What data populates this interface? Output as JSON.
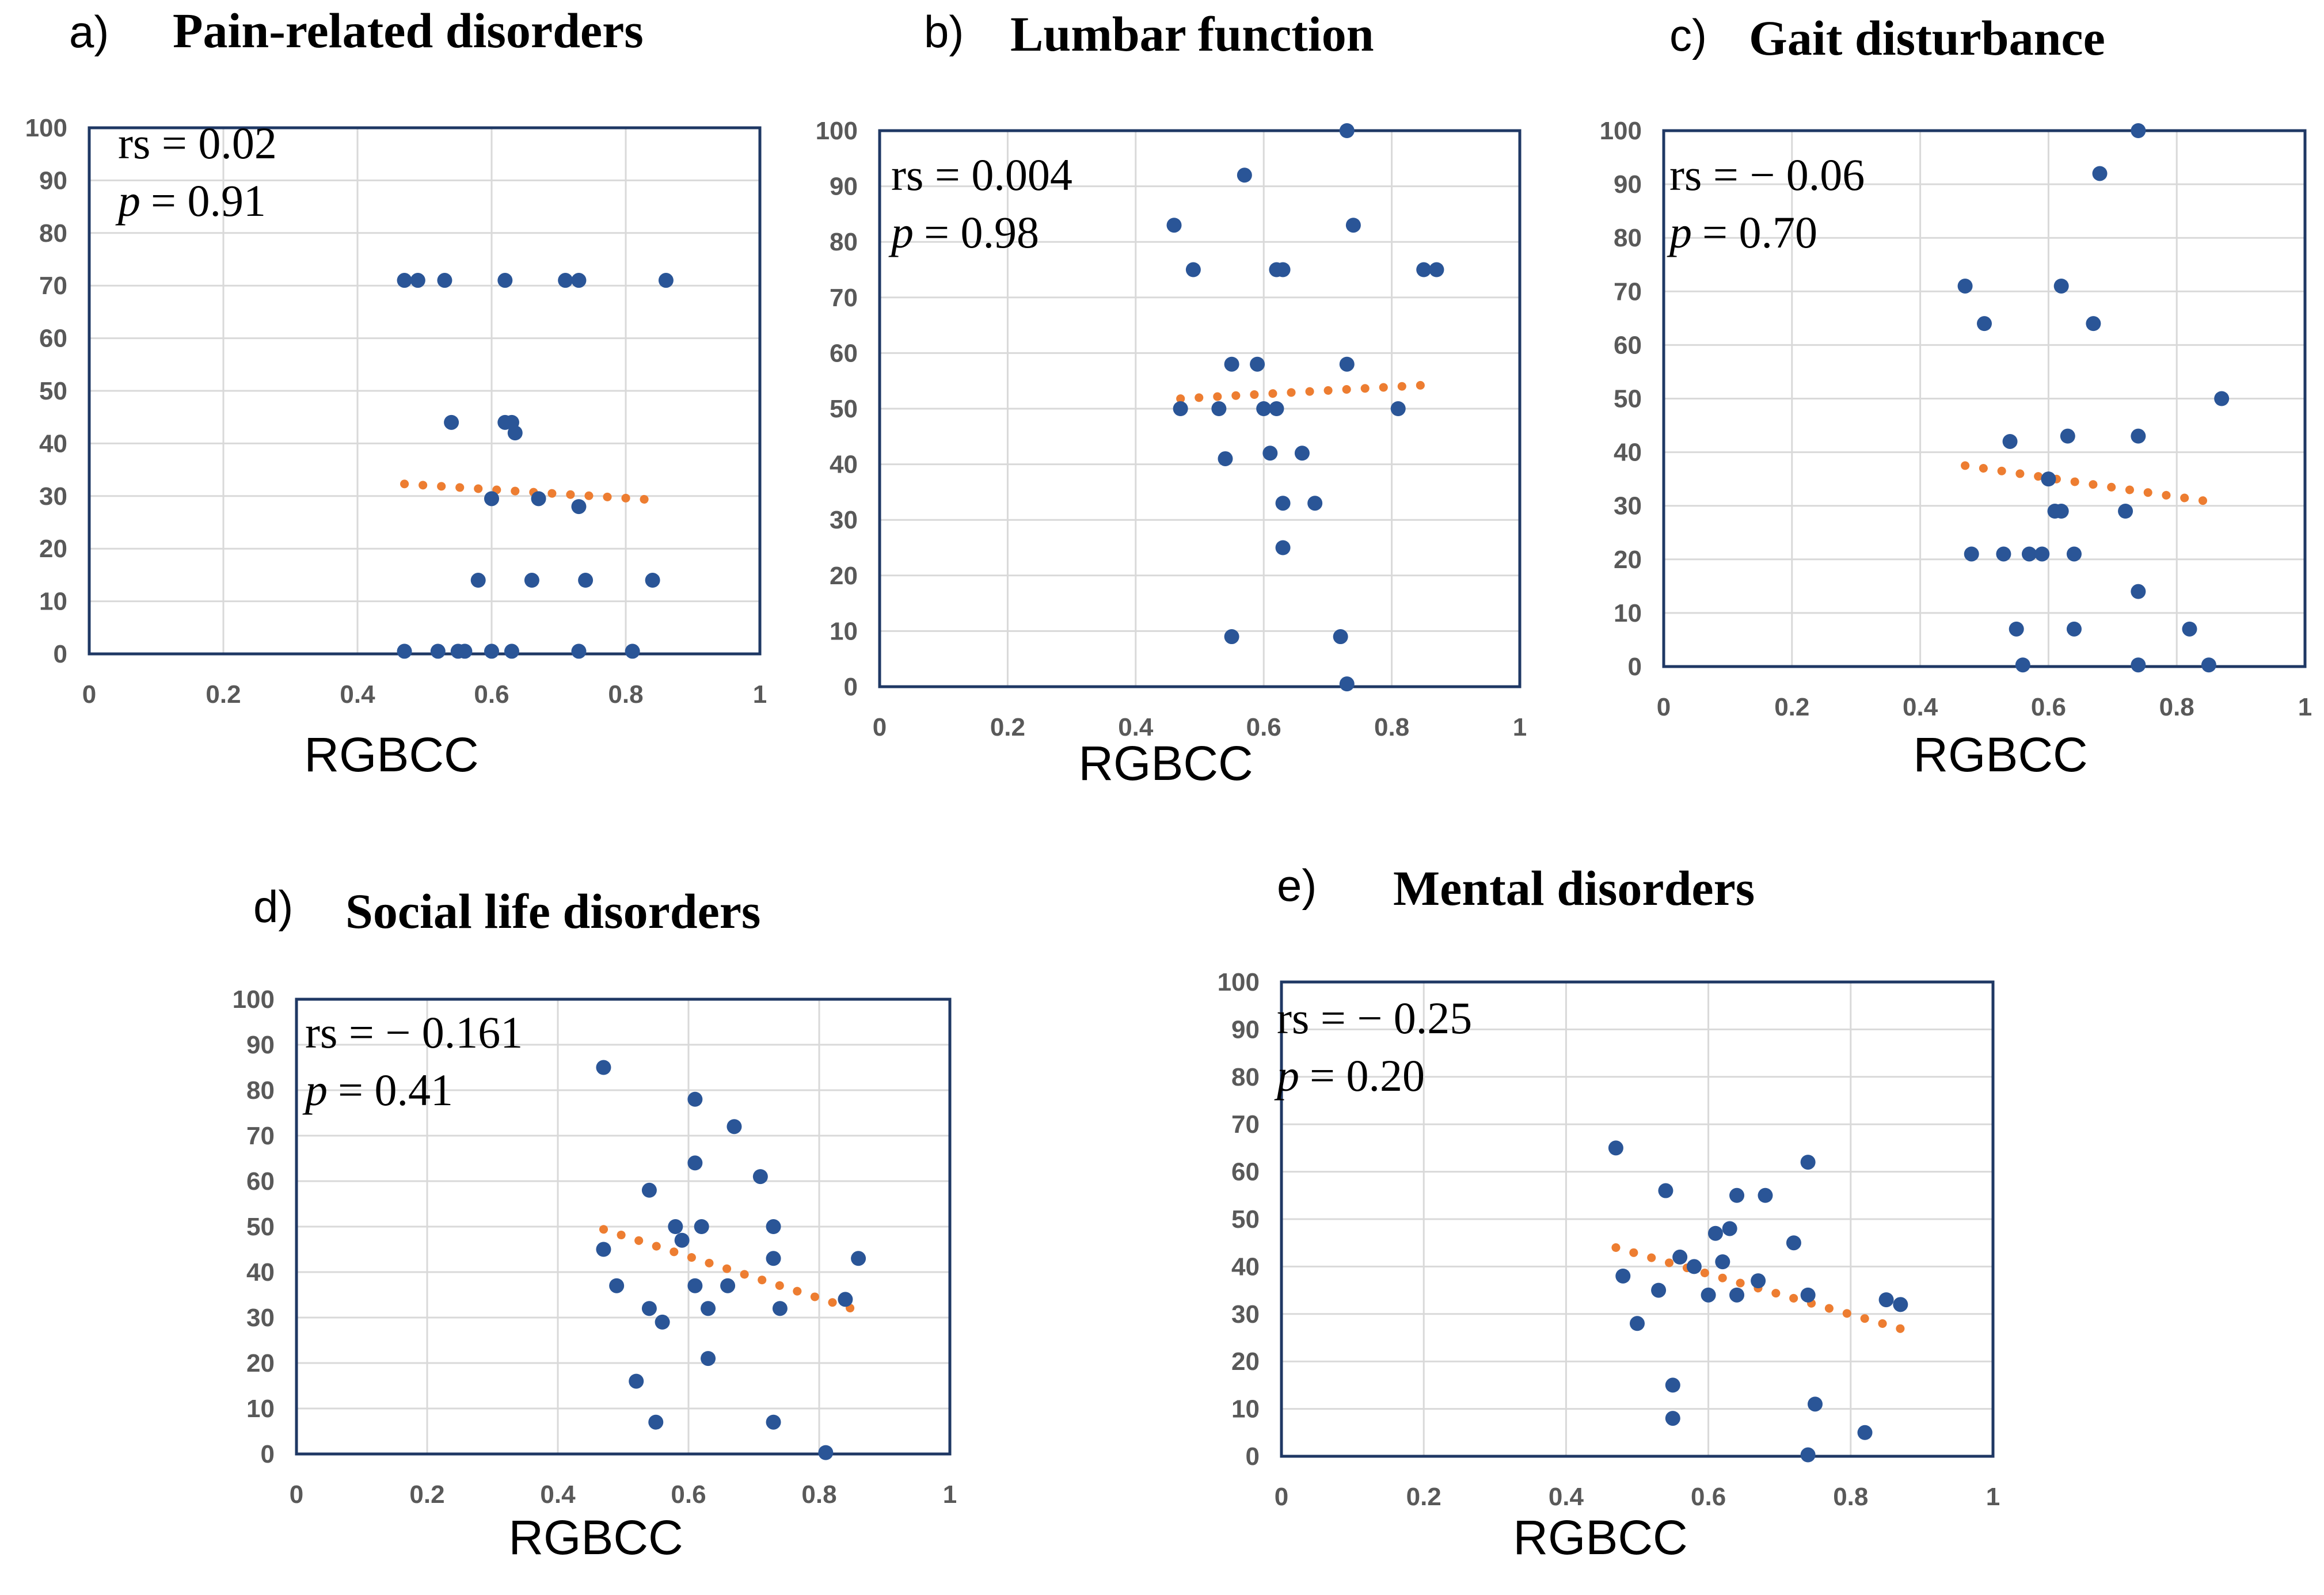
{
  "figure": {
    "x_label": "RGBCC"
  },
  "colors": {
    "point": "#2a5597",
    "trend": "#ed7d31",
    "frame": "#1f3864",
    "grid": "#d9d9d9",
    "tick": "#595959"
  },
  "chart_data": [
    {
      "panel_letter": "a)",
      "type": "scatter",
      "title": "Pain-related disorders",
      "xlabel": "RGBCC",
      "xlim": [
        0,
        1
      ],
      "ylim": [
        0,
        100
      ],
      "x_ticks": [
        "0",
        "0.2",
        "0.4",
        "0.6",
        "0.8",
        "1"
      ],
      "y_ticks": [
        "0",
        "10",
        "20",
        "30",
        "40",
        "50",
        "60",
        "70",
        "80",
        "90",
        "100"
      ],
      "rs_text": "rs = 0.02",
      "p_label": "p",
      "p_value_text": "= 0.91",
      "points": [
        [
          0.47,
          71
        ],
        [
          0.49,
          71
        ],
        [
          0.53,
          71
        ],
        [
          0.62,
          71
        ],
        [
          0.71,
          71
        ],
        [
          0.73,
          71
        ],
        [
          0.86,
          71
        ],
        [
          0.54,
          44
        ],
        [
          0.62,
          44
        ],
        [
          0.63,
          44
        ],
        [
          0.635,
          42
        ],
        [
          0.6,
          29.5
        ],
        [
          0.67,
          29.5
        ],
        [
          0.73,
          28
        ],
        [
          0.58,
          14
        ],
        [
          0.66,
          14
        ],
        [
          0.74,
          14
        ],
        [
          0.84,
          14
        ],
        [
          0.47,
          0.5
        ],
        [
          0.52,
          0.5
        ],
        [
          0.55,
          0.5
        ],
        [
          0.56,
          0.5
        ],
        [
          0.6,
          0.5
        ],
        [
          0.63,
          0.5
        ],
        [
          0.73,
          0.5
        ],
        [
          0.81,
          0.5
        ]
      ],
      "trend": {
        "x_start": 0.47,
        "y_start": 32.3,
        "x_end": 0.85,
        "y_end": 29.2
      }
    },
    {
      "panel_letter": "b)",
      "type": "scatter",
      "title": "Lumbar function",
      "xlabel": "RGBCC",
      "xlim": [
        0,
        1
      ],
      "ylim": [
        0,
        100
      ],
      "x_ticks": [
        "0",
        "0.2",
        "0.4",
        "0.6",
        "0.8",
        "1"
      ],
      "y_ticks": [
        "0",
        "10",
        "20",
        "30",
        "40",
        "50",
        "60",
        "70",
        "80",
        "90",
        "100"
      ],
      "rs_text": "rs = 0.004",
      "p_label": "p",
      "p_value_text": "= 0.98",
      "points": [
        [
          0.73,
          100
        ],
        [
          0.57,
          92
        ],
        [
          0.46,
          83
        ],
        [
          0.74,
          83
        ],
        [
          0.49,
          75
        ],
        [
          0.62,
          75
        ],
        [
          0.63,
          75
        ],
        [
          0.85,
          75
        ],
        [
          0.87,
          75
        ],
        [
          0.55,
          58
        ],
        [
          0.59,
          58
        ],
        [
          0.73,
          58
        ],
        [
          0.47,
          50
        ],
        [
          0.53,
          50
        ],
        [
          0.6,
          50
        ],
        [
          0.62,
          50
        ],
        [
          0.81,
          50
        ],
        [
          0.54,
          41
        ],
        [
          0.61,
          42
        ],
        [
          0.66,
          42
        ],
        [
          0.63,
          33
        ],
        [
          0.68,
          33
        ],
        [
          0.63,
          25
        ],
        [
          0.55,
          9
        ],
        [
          0.72,
          9
        ],
        [
          0.73,
          0.5
        ]
      ],
      "trend": {
        "x_start": 0.47,
        "y_start": 51.8,
        "x_end": 0.86,
        "y_end": 54.3
      }
    },
    {
      "panel_letter": "c)",
      "type": "scatter",
      "title": "Gait disturbance",
      "xlabel": "RGBCC",
      "xlim": [
        0,
        1
      ],
      "ylim": [
        0,
        100
      ],
      "x_ticks": [
        "0",
        "0.2",
        "0.4",
        "0.6",
        "0.8",
        "1"
      ],
      "y_ticks": [
        "0",
        "10",
        "20",
        "30",
        "40",
        "50",
        "60",
        "70",
        "80",
        "90",
        "100"
      ],
      "rs_text": "rs = − 0.06",
      "p_label": "p",
      "p_value_text": "= 0.70",
      "points": [
        [
          0.74,
          100
        ],
        [
          0.68,
          92
        ],
        [
          0.47,
          71
        ],
        [
          0.62,
          71
        ],
        [
          0.5,
          64
        ],
        [
          0.67,
          64
        ],
        [
          0.87,
          50
        ],
        [
          0.54,
          42
        ],
        [
          0.63,
          43
        ],
        [
          0.74,
          43
        ],
        [
          0.6,
          35
        ],
        [
          0.61,
          29
        ],
        [
          0.62,
          29
        ],
        [
          0.72,
          29
        ],
        [
          0.48,
          21
        ],
        [
          0.53,
          21
        ],
        [
          0.57,
          21
        ],
        [
          0.59,
          21
        ],
        [
          0.64,
          21
        ],
        [
          0.74,
          14
        ],
        [
          0.55,
          7
        ],
        [
          0.64,
          7
        ],
        [
          0.82,
          7
        ],
        [
          0.56,
          0.3
        ],
        [
          0.74,
          0.3
        ],
        [
          0.85,
          0.3
        ]
      ],
      "trend": {
        "x_start": 0.47,
        "y_start": 37.5,
        "x_end": 0.85,
        "y_end": 30.8
      }
    },
    {
      "panel_letter": "d)",
      "type": "scatter",
      "title": "Social life disorders",
      "xlabel": "RGBCC",
      "xlim": [
        0,
        1
      ],
      "ylim": [
        0,
        100
      ],
      "x_ticks": [
        "0",
        "0.2",
        "0.4",
        "0.6",
        "0.8",
        "1"
      ],
      "y_ticks": [
        "0",
        "10",
        "20",
        "30",
        "40",
        "50",
        "60",
        "70",
        "80",
        "90",
        "100"
      ],
      "rs_text": "rs = − 0.161",
      "p_label": "p",
      "p_value_text": "= 0.41",
      "points": [
        [
          0.47,
          85
        ],
        [
          0.61,
          78
        ],
        [
          0.67,
          72
        ],
        [
          0.71,
          61
        ],
        [
          0.61,
          64
        ],
        [
          0.54,
          58
        ],
        [
          0.58,
          50
        ],
        [
          0.59,
          47
        ],
        [
          0.62,
          50
        ],
        [
          0.73,
          50
        ],
        [
          0.47,
          45
        ],
        [
          0.49,
          37
        ],
        [
          0.61,
          37
        ],
        [
          0.66,
          37
        ],
        [
          0.73,
          43
        ],
        [
          0.86,
          43
        ],
        [
          0.84,
          34
        ],
        [
          0.54,
          32
        ],
        [
          0.56,
          29
        ],
        [
          0.63,
          32
        ],
        [
          0.74,
          32
        ],
        [
          0.63,
          21
        ],
        [
          0.52,
          16
        ],
        [
          0.55,
          7
        ],
        [
          0.73,
          7
        ],
        [
          0.81,
          0.3
        ]
      ],
      "trend": {
        "x_start": 0.47,
        "y_start": 49.4,
        "x_end": 0.86,
        "y_end": 31.5
      }
    },
    {
      "panel_letter": "e)",
      "type": "scatter",
      "title": "Mental disorders",
      "xlabel": "RGBCC",
      "xlim": [
        0,
        1
      ],
      "ylim": [
        0,
        100
      ],
      "x_ticks": [
        "0",
        "0.2",
        "0.4",
        "0.6",
        "0.8",
        "1"
      ],
      "y_ticks": [
        "0",
        "10",
        "20",
        "30",
        "40",
        "50",
        "60",
        "70",
        "80",
        "90",
        "100"
      ],
      "rs_text": "rs = − 0.25",
      "p_label": "p",
      "p_value_text": "= 0.20",
      "points": [
        [
          0.47,
          65
        ],
        [
          0.74,
          62
        ],
        [
          0.54,
          56
        ],
        [
          0.64,
          55
        ],
        [
          0.68,
          55
        ],
        [
          0.61,
          47
        ],
        [
          0.63,
          48
        ],
        [
          0.72,
          45
        ],
        [
          0.56,
          42
        ],
        [
          0.58,
          40
        ],
        [
          0.62,
          41
        ],
        [
          0.67,
          37
        ],
        [
          0.48,
          38
        ],
        [
          0.53,
          35
        ],
        [
          0.6,
          34
        ],
        [
          0.64,
          34
        ],
        [
          0.74,
          34
        ],
        [
          0.85,
          33
        ],
        [
          0.87,
          32
        ],
        [
          0.5,
          28
        ],
        [
          0.55,
          15
        ],
        [
          0.75,
          11
        ],
        [
          0.55,
          8
        ],
        [
          0.82,
          5
        ],
        [
          0.74,
          0.3
        ]
      ],
      "trend": {
        "x_start": 0.47,
        "y_start": 44.0,
        "x_end": 0.87,
        "y_end": 26.9
      }
    }
  ]
}
